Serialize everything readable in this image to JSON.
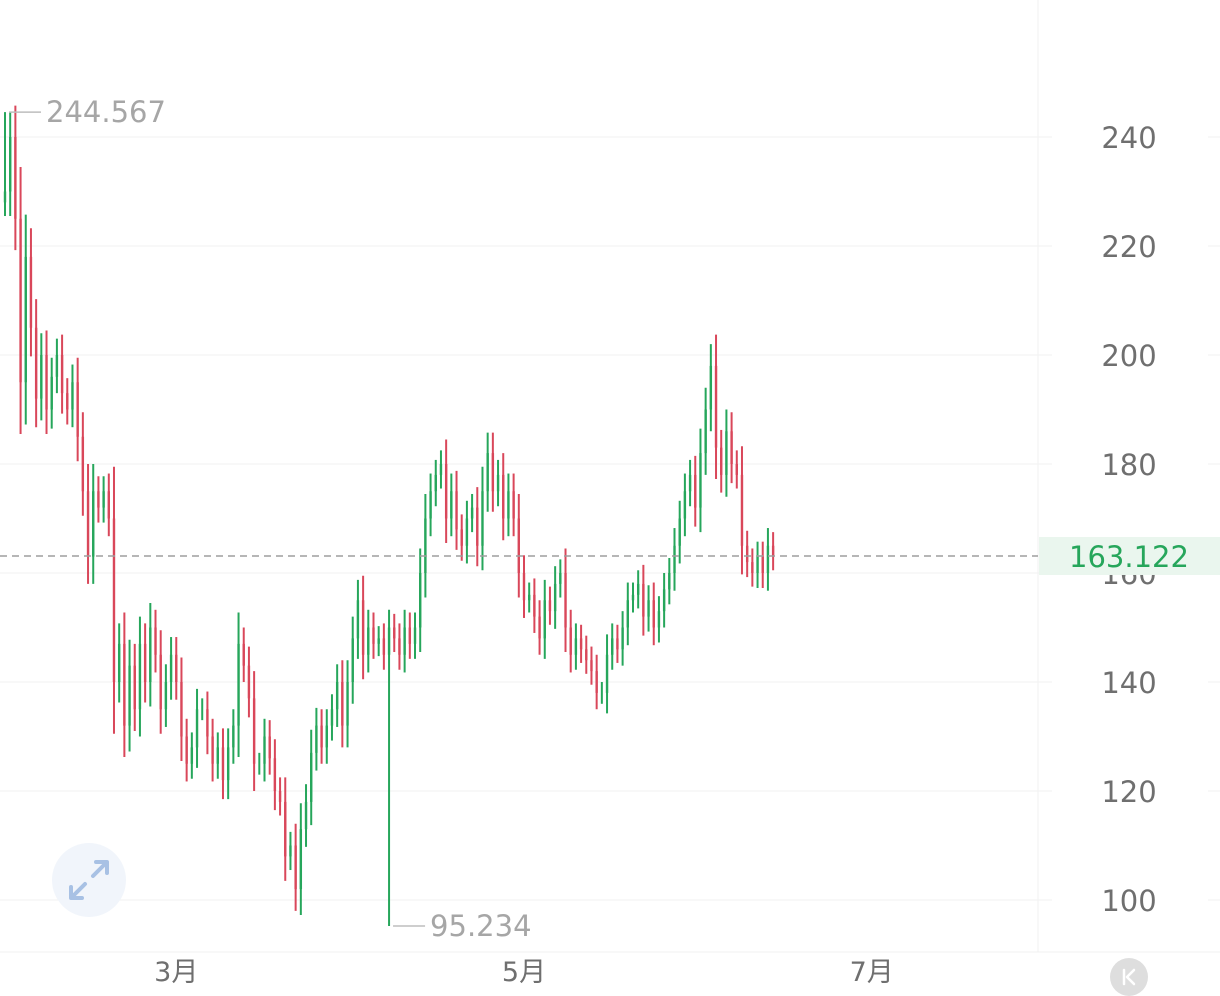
{
  "chart_data": {
    "type": "ohlc",
    "title": "",
    "xlabel": "",
    "ylabel": "",
    "y_ticks": [
      100,
      120,
      140,
      160,
      180,
      200,
      220,
      240
    ],
    "ylim": [
      88,
      258
    ],
    "x_ticks": [
      {
        "label": "3月",
        "index": 33
      },
      {
        "label": "5月",
        "index": 100
      },
      {
        "label": "7月",
        "index": 167
      }
    ],
    "high_label": "244.567",
    "low_label": "95.234",
    "high_index": 0,
    "low_index": 74,
    "last_price": 163.122,
    "last_price_label": "163.122",
    "closes": [
      230,
      240,
      225,
      195,
      218,
      205,
      192,
      200,
      190,
      196,
      200,
      193,
      190,
      195,
      185,
      175,
      163,
      175,
      172,
      175,
      170,
      140,
      147,
      132,
      143,
      135,
      147,
      140,
      150,
      145,
      135,
      140,
      145,
      140,
      130,
      125,
      128,
      135,
      135,
      130,
      125,
      128,
      122,
      128,
      132,
      147,
      143,
      137,
      125,
      125,
      130,
      126,
      120,
      118,
      108,
      110,
      102,
      113,
      118,
      127,
      132,
      128,
      132,
      135,
      140,
      132,
      140,
      148,
      155,
      145,
      150,
      147,
      148,
      145,
      150,
      148,
      145,
      150,
      147,
      150,
      160,
      170,
      175,
      178,
      180,
      170,
      175,
      168,
      165,
      170,
      172,
      165,
      175,
      182,
      175,
      178,
      170,
      175,
      170,
      160,
      155,
      156,
      152,
      148,
      155,
      153,
      158,
      160,
      150,
      145,
      148,
      146,
      144,
      142,
      138,
      138,
      145,
      148,
      146,
      150,
      155,
      156,
      158,
      152,
      155,
      150,
      153,
      157,
      160,
      165,
      170,
      175,
      178,
      172,
      182,
      190,
      198,
      183,
      178,
      186,
      180,
      178,
      165,
      162,
      160,
      163,
      160,
      165,
      163
    ]
  },
  "ui": {
    "expand_icon": "expand-arrows-icon",
    "collapse_icon": "collapse-left-icon"
  }
}
